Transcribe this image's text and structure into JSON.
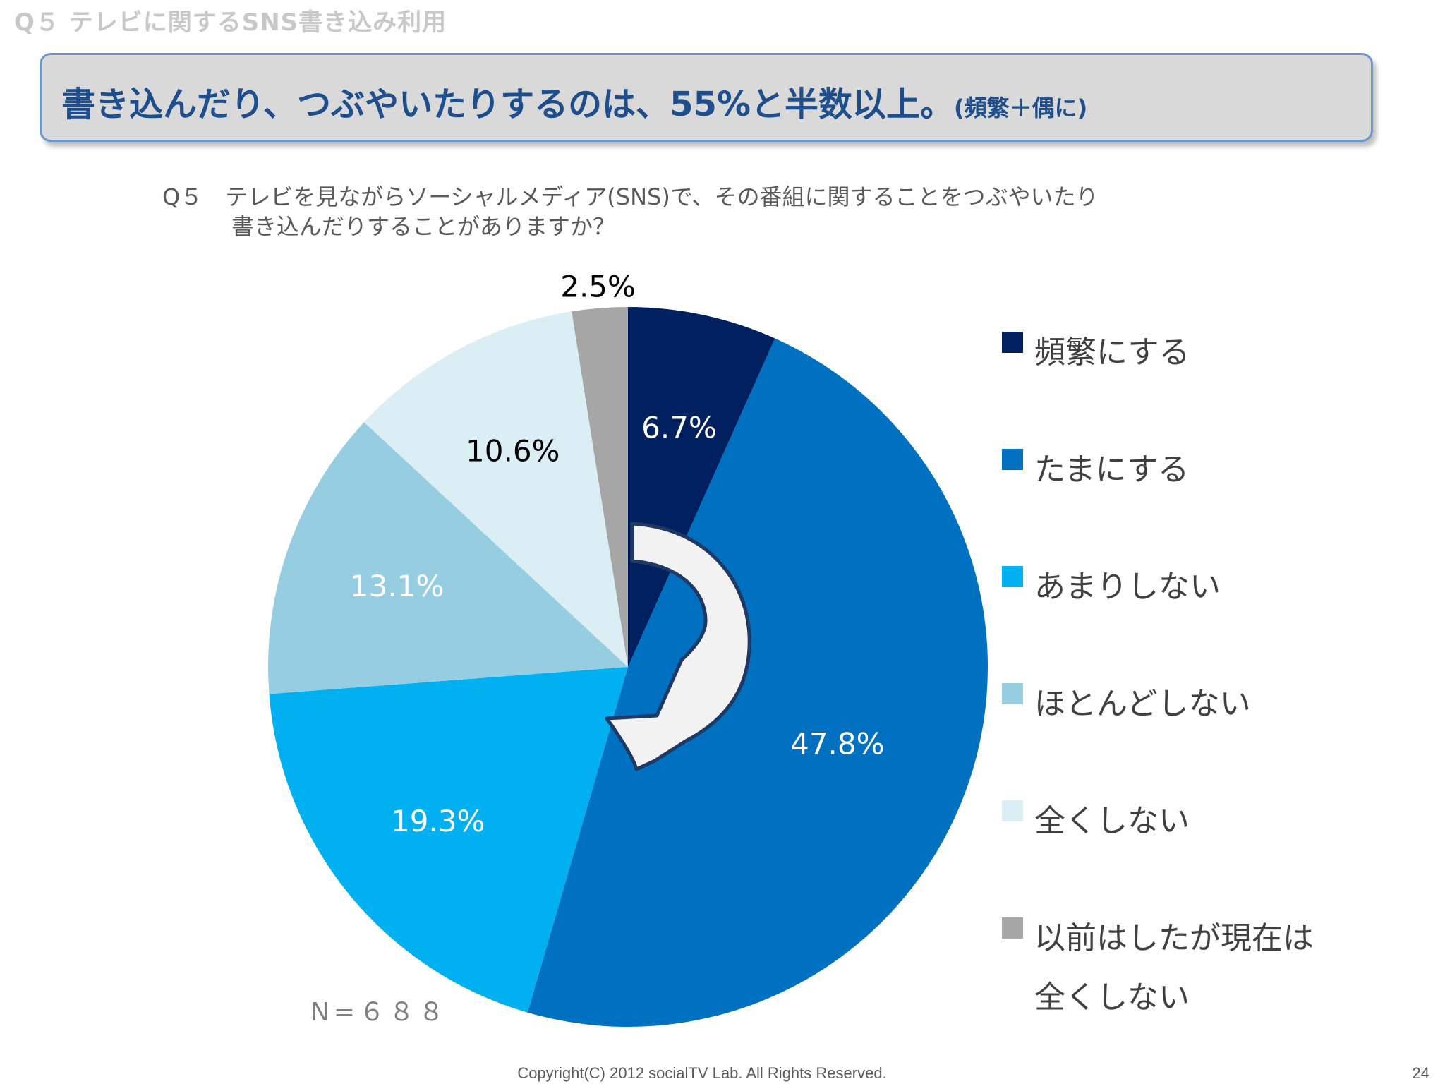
{
  "section_title": "Q５ テレビに関するSNS書き込み利用",
  "headline": {
    "main": "書き込んだり、つぶやいたりするのは、55%と半数以上。",
    "note": "(頻繁＋偶に)"
  },
  "question": {
    "line1": "Q５　テレビを見ながらソーシャルメディア(SNS)で、その番組に関することをつぶやいたり",
    "line2": "書き込んだりすることがありますか？"
  },
  "sample_size": "N=６８８",
  "footer": "Copyright(C) 2012 socialTV Lab. All Rights Reserved.",
  "page_number": "24",
  "chart_data": {
    "type": "pie",
    "title": "",
    "categories": [
      "頻繁にする",
      "たまにする",
      "あまりしない",
      "ほとんどしない",
      "全くしない",
      "以前はしたが現在は全くしない"
    ],
    "values": [
      6.7,
      47.8,
      19.3,
      13.1,
      10.6,
      2.5
    ],
    "data_labels": [
      "6.7%",
      "47.8%",
      "19.3%",
      "13.1%",
      "10.6%",
      "2.5%"
    ],
    "colors": [
      "#002060",
      "#0070c0",
      "#00b0f0",
      "#97cde0",
      "#daeef3",
      "#a6a6a6"
    ],
    "label_colors": [
      "#ffffff",
      "#ffffff",
      "#ffffff",
      "#ffffff",
      "#000000",
      "#000000"
    ],
    "legend": {
      "position": "right",
      "entries": [
        "頻繁にする",
        "たまにする",
        "あまりしない",
        "ほとんどしない",
        "全くしない",
        "以前はしたが現在は\n全くしない"
      ]
    },
    "start_angle": "12 o'clock",
    "direction": "clockwise"
  }
}
